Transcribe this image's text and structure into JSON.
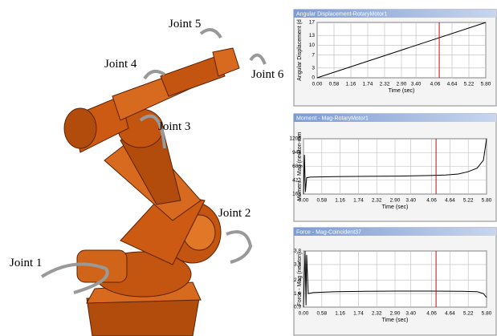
{
  "figure": {
    "joint_labels": [
      "Joint 5",
      "Joint 4",
      "Joint 6",
      "Joint 3",
      "Joint 2",
      "Joint 1"
    ]
  },
  "chart_data": [
    {
      "type": "line",
      "title": "Angular Displacement-RotaryMotor1",
      "ylabel": "Angular Displacement (d",
      "xlabel": "Time (sec)",
      "x": [
        0,
        5.8
      ],
      "values": [
        0,
        17
      ],
      "color": "#000000",
      "cursor": 4.2,
      "cursor_color": "#e00000",
      "grid": true,
      "xlim": [
        0,
        5.8
      ],
      "ylim": [
        0,
        17
      ],
      "xticks": [
        {
          "value": 0,
          "label": "0.00"
        },
        {
          "value": 0.58,
          "label": "0.58"
        },
        {
          "value": 1.16,
          "label": "1.16"
        },
        {
          "value": 1.74,
          "label": "1.74"
        },
        {
          "value": 2.32,
          "label": "2.32"
        },
        {
          "value": 2.9,
          "label": "2.90"
        },
        {
          "value": 3.4,
          "label": "3.40"
        },
        {
          "value": 4.06,
          "label": "4.06"
        },
        {
          "value": 4.64,
          "label": "4.64"
        },
        {
          "value": 5.22,
          "label": "5.22"
        },
        {
          "value": 5.8,
          "label": "5.80"
        }
      ],
      "yticks": [
        0,
        3,
        7,
        10,
        13,
        17
      ]
    },
    {
      "type": "line",
      "title": "Moment - Mag-RotaryMotor1",
      "ylabel": "Moment - Mag (newton-mm",
      "xlabel": "Time (sec)",
      "x": [
        0,
        0.03,
        0.06,
        0.1,
        0.2,
        0.5,
        1,
        2,
        3,
        4,
        4.5,
        4.9,
        5.2,
        5.5,
        5.7,
        5.8
      ],
      "values": [
        161,
        900,
        200,
        470,
        480,
        485,
        490,
        495,
        500,
        510,
        520,
        540,
        580,
        650,
        800,
        1205
      ],
      "color": "#000000",
      "cursor": 4.2,
      "cursor_color": "#e00000",
      "grid": true,
      "xlim": [
        0,
        5.8
      ],
      "ylim": [
        161,
        1205
      ],
      "xticks": [
        {
          "value": 0,
          "label": "0.00"
        },
        {
          "value": 0.58,
          "label": "0.58"
        },
        {
          "value": 1.16,
          "label": "1.16"
        },
        {
          "value": 1.74,
          "label": "1.74"
        },
        {
          "value": 2.32,
          "label": "2.32"
        },
        {
          "value": 2.9,
          "label": "2.90"
        },
        {
          "value": 3.4,
          "label": "3.40"
        },
        {
          "value": 4.06,
          "label": "4.06"
        },
        {
          "value": 4.64,
          "label": "4.64"
        },
        {
          "value": 5.22,
          "label": "5.22"
        },
        {
          "value": 5.8,
          "label": "5.80"
        }
      ],
      "yticks": [
        161,
        422,
        683,
        944,
        1205
      ]
    },
    {
      "type": "line",
      "title": "Force - Mag-Coincident37",
      "ylabel": "Force - Mag (newton)",
      "xlabel": "Time (sec)",
      "x": [
        0,
        0.05,
        0.08,
        0.1,
        0.15,
        0.3,
        1,
        2,
        3,
        4,
        5,
        5.5,
        5.7,
        5.8
      ],
      "values": [
        0.9,
        3.8,
        1.0,
        3.6,
        1.6,
        1.65,
        1.7,
        1.72,
        1.73,
        1.73,
        1.72,
        1.7,
        1.6,
        1.4
      ],
      "color": "#000000",
      "cursor": 4.2,
      "cursor_color": "#e00000",
      "grid": true,
      "xlim": [
        0,
        5.8
      ],
      "ylim": [
        0.9,
        3.8
      ],
      "xticks": [
        {
          "value": 0,
          "label": "0.00"
        },
        {
          "value": 0.58,
          "label": "0.58"
        },
        {
          "value": 1.16,
          "label": "1.16"
        },
        {
          "value": 1.74,
          "label": "1.74"
        },
        {
          "value": 2.32,
          "label": "2.32"
        },
        {
          "value": 2.9,
          "label": "2.90"
        },
        {
          "value": 3.4,
          "label": "3.40"
        },
        {
          "value": 4.06,
          "label": "4.06"
        },
        {
          "value": 4.64,
          "label": "4.64"
        },
        {
          "value": 5.22,
          "label": "5.22"
        },
        {
          "value": 5.8,
          "label": "5.80"
        }
      ],
      "yticks": [
        0.9,
        1.6,
        2.3,
        3.1,
        3.8
      ]
    }
  ]
}
